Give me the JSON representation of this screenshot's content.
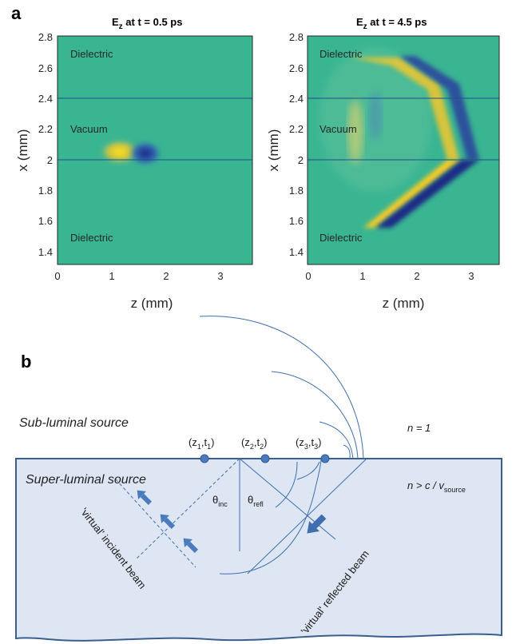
{
  "panel_a": {
    "tag": "a",
    "plots": [
      {
        "title_main": "E",
        "title_sub": "z",
        "title_rest": " at t = 0.5 ps",
        "xlabel": "z (mm)",
        "ylabel": "x (mm)",
        "regions": [
          "Dielectric",
          "Vacuum",
          "Dielectric"
        ]
      },
      {
        "title_main": "E",
        "title_sub": "z",
        "title_rest": " at t = 4.5 ps",
        "xlabel": "z (mm)",
        "ylabel": "x (mm)",
        "regions": [
          "Dielectric",
          "Vacuum",
          "Dielectric"
        ]
      }
    ],
    "x_ticks": [
      "0",
      "1",
      "2",
      "3"
    ],
    "y_ticks": [
      "2.8",
      "2.6",
      "2.4",
      "2.2",
      "2",
      "1.8",
      "1.6",
      "1.4"
    ],
    "colors": {
      "field_bg": "#3ab592",
      "positive": "#f5d020",
      "negative": "#2b3fa0",
      "interface_line": "#1f4e8c"
    }
  },
  "panel_b": {
    "tag": "b",
    "sub_luminal": "Sub-luminal source",
    "super_luminal": "Super-luminal source",
    "n_vacuum": "n = 1",
    "n_medium_prefix": "n > c / v",
    "n_medium_sub": "source",
    "points": [
      {
        "label": "(z",
        "i": "1",
        "mid": ",t",
        "j": "1",
        "end": ")"
      },
      {
        "label": "(z",
        "i": "2",
        "mid": ",t",
        "j": "2",
        "end": ")"
      },
      {
        "label": "(z",
        "i": "3",
        "mid": ",t",
        "j": "3",
        "end": ")"
      }
    ],
    "theta_inc": "θ",
    "theta_inc_sub": "inc",
    "theta_refl": "θ",
    "theta_refl_sub": "refl",
    "incident_beam": "'virtual' incident beam",
    "reflected_beam": "'virtual' reflected beam",
    "colors": {
      "medium_fill": "#dde6f2",
      "line": "#3f6fad",
      "boundary": "#3a5f8f",
      "point": "#4a7bbf"
    }
  }
}
